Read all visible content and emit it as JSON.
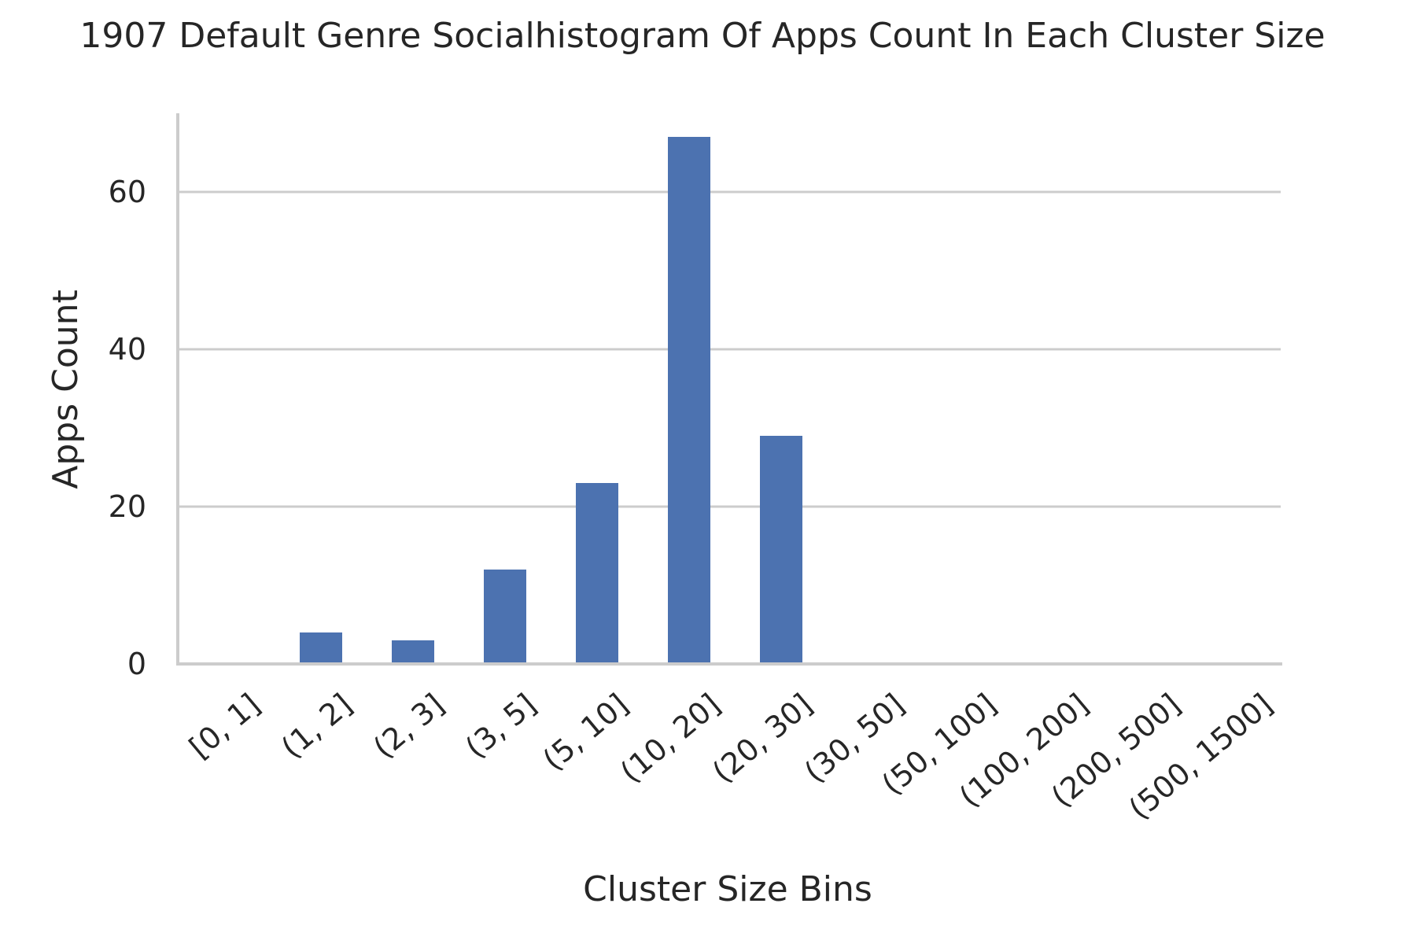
{
  "chart_data": {
    "type": "bar",
    "title": "1907 Default Genre Socialhistogram Of Apps Count In Each Cluster Size",
    "xlabel": "Cluster Size Bins",
    "ylabel": "Apps Count",
    "categories": [
      "[0, 1]",
      "(1, 2]",
      "(2, 3]",
      "(3, 5]",
      "(5, 10]",
      "(10, 20]",
      "(20, 30]",
      "(30, 50]",
      "(50, 100]",
      "(100, 200]",
      "(200, 500]",
      "(500, 1500]"
    ],
    "values": [
      0,
      4,
      3,
      12,
      23,
      67,
      29,
      0,
      0,
      0,
      0,
      0
    ],
    "ylim": [
      0,
      70
    ],
    "yticks": [
      0,
      20,
      40,
      60
    ],
    "bar_color": "#4c72b0",
    "grid": true,
    "legend": "none"
  }
}
